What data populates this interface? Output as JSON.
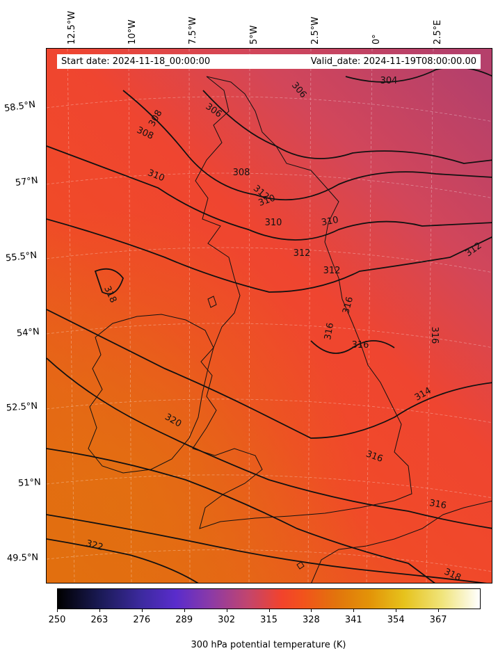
{
  "map": {
    "projection": "lambert-conformal",
    "region": "British Isles",
    "start_date_text": "Start date: 2024-11-18_00:00:00",
    "valid_date_text": "Valid_date: 2024-11-19T08:00:00.00",
    "lon_labels": [
      "12.5°W",
      "10°W",
      "7.5°W",
      "5°W",
      "2.5°W",
      "0°",
      "2.5°E"
    ],
    "lat_labels": [
      "58.5°N",
      "57°N",
      "55.5°N",
      "54°N",
      "52.5°N",
      "51°N",
      "49.5°N"
    ],
    "contour_labels": [
      "304",
      "306",
      "306",
      "308",
      "308",
      "308",
      "310",
      "310",
      "310",
      "310",
      "312",
      "312",
      "312",
      "312",
      "314",
      "316",
      "316",
      "316",
      "316",
      "316",
      "316",
      "318",
      "318",
      "320",
      "322"
    ],
    "field_colors": {
      "north_east": "#b5406b",
      "mid": "#f0442a",
      "south_west": "#e56c10"
    }
  },
  "colorbar": {
    "ticks": [
      "250",
      "263",
      "276",
      "289",
      "302",
      "315",
      "328",
      "341",
      "354",
      "367"
    ],
    "min": 250,
    "max": 380,
    "colormap": "CMRmap",
    "label": "300 hPa potential temperature (K)"
  }
}
